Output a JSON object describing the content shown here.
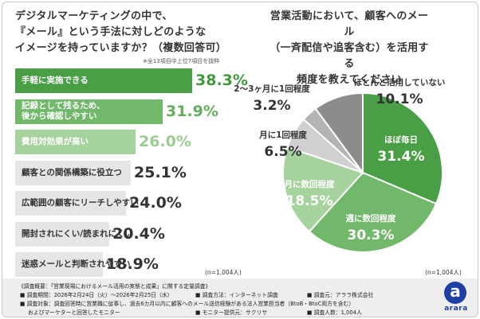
{
  "left_title": [
    "デジタルマーケティングの中で、",
    "『メール』という手法に対しどのような",
    "イメージを持っていますか？（複数回答可）"
  ],
  "left_note": "※全13項目中上位7項目を抜粋",
  "left_n": "(n=1,004人)",
  "right_title": [
    "営業活動において、顧客へのメール",
    "（一斉配信や追客含む）を活用する",
    "頻度を教えてください"
  ],
  "right_n": "(n=1,004人)",
  "footer": {
    "line1": "《調査概要：「営業現場におけるメール活用の実態と成果」に関する定量調査》",
    "line2a": "■ 調査期間：2026年2月24日（火）～2026年2月25日（水）",
    "line2b": "■ 調査方法：インターネット調査",
    "line2c": "■ 調査元：アララ株式会社",
    "line3": "■ 調査対象：調査回答時に営業職に従事し、過去6カ月以内に顧客へのメール送信経験がある法人営業担当者（BtoB・BtoC両方を含む）",
    "line4a": "およびマーケターと回答したモニター",
    "line4b": "■ モニター提供元：サクリサ",
    "line4c": "■ 調査人数：1,004人"
  },
  "logo": {
    "mark": "a",
    "text": "arara"
  },
  "chart_data": [
    {
      "type": "bar",
      "orientation": "horizontal",
      "title": "デジタルマーケティングの中で、『メール』という手法に対しどのようなイメージを持っていますか？（複数回答可）",
      "categories": [
        "手軽に実施できる",
        "記録として残るため、後から確認しやすい",
        "費用対効果が高い",
        "顧客との関係構築に役立つ",
        "広範囲の顧客にリーチしやすい",
        "開封されにくい/読まれにくい",
        "迷惑メールと判断されやすい"
      ],
      "label_lines": [
        [
          "手軽に実施できる"
        ],
        [
          "記録として残るため、",
          "後から確認しやすい"
        ],
        [
          "費用対効果が高い"
        ],
        [
          "顧客との関係構築に役立つ"
        ],
        [
          "広範囲の顧客にリーチしやすい"
        ],
        [
          "開封されにくい/読まれにくい"
        ],
        [
          "迷惑メールと判断されやすい"
        ]
      ],
      "values": [
        38.3,
        31.9,
        26.0,
        25.1,
        24.0,
        20.4,
        18.9
      ],
      "value_labels": [
        "38.3%",
        "31.9%",
        "26.0%",
        "25.1%",
        "24.0%",
        "20.4%",
        "18.9%"
      ],
      "unit": "%",
      "colors": {
        "highlight": [
          "#4a9e45",
          "#72b86a",
          "#a6d39d"
        ],
        "base": "#e6e6e6",
        "value_text_highlight": [
          "#3f9a3b",
          "#64ae5d",
          "#9bcc92"
        ],
        "value_text_base": "#333333"
      }
    },
    {
      "type": "pie",
      "title": "営業活動において、顧客へのメール（一斉配信や追客含む）を活用する頻度を教えてください",
      "categories": [
        "ほぼ毎日",
        "週に数回程度",
        "月に数回程度",
        "月に1回程度",
        "2～3ヶ月に1回程度",
        "ほとんど活用していない"
      ],
      "values": [
        31.4,
        30.3,
        18.5,
        6.5,
        3.2,
        10.1
      ],
      "value_labels": [
        "31.4%",
        "30.3%",
        "18.5%",
        "6.5%",
        "3.2%",
        "10.1%"
      ],
      "colors": [
        "#4a9e45",
        "#72b86a",
        "#a6d39d",
        "#d0d0d0",
        "#b4b4b4",
        "#8c8c8c"
      ]
    }
  ]
}
